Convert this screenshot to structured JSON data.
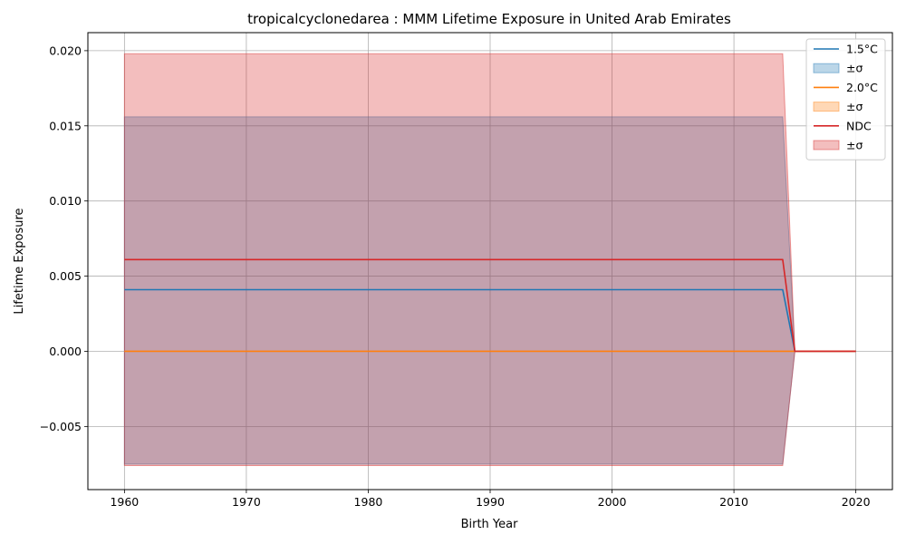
{
  "chart_data": {
    "type": "line",
    "title": "tropicalcyclonedarea : MMM Lifetime Exposure in United Arab Emirates",
    "xlabel": "Birth Year",
    "ylabel": "Lifetime Exposure",
    "xlim": [
      1957,
      2023
    ],
    "ylim": [
      -0.0092,
      0.0212
    ],
    "xticks": [
      1960,
      1970,
      1980,
      1990,
      2000,
      2010,
      2020
    ],
    "xtick_labels": [
      "1960",
      "1970",
      "1980",
      "1990",
      "2000",
      "2010",
      "2020"
    ],
    "yticks": [
      -0.005,
      0.0,
      0.005,
      0.01,
      0.015,
      0.02
    ],
    "ytick_labels": [
      "−0.005",
      "0.000",
      "0.005",
      "0.010",
      "0.015",
      "0.020"
    ],
    "grid": true,
    "legend_position": "top-right",
    "series": [
      {
        "name": "1.5°C",
        "band_label": "±σ",
        "color": "#1f77b4",
        "band_color": "#1f77b4",
        "x": [
          1960,
          2014,
          2015,
          2020
        ],
        "values": [
          0.0041,
          0.0041,
          0.0,
          0.0
        ],
        "upper": [
          0.0156,
          0.0156,
          0.0,
          0.0
        ],
        "lower": [
          -0.0075,
          -0.0075,
          0.0,
          0.0
        ]
      },
      {
        "name": "2.0°C",
        "band_label": "±σ",
        "color": "#ff7f0e",
        "band_color": "#ff7f0e",
        "x": [
          1960,
          2014,
          2015,
          2020
        ],
        "values": [
          0.0,
          0.0,
          0.0,
          0.0
        ],
        "upper": [
          0.0,
          0.0,
          0.0,
          0.0
        ],
        "lower": [
          0.0,
          0.0,
          0.0,
          0.0
        ]
      },
      {
        "name": "NDC",
        "band_label": "±σ",
        "color": "#d62728",
        "band_color": "#d62728",
        "x": [
          1960,
          2014,
          2015,
          2020
        ],
        "values": [
          0.0061,
          0.0061,
          0.0,
          0.0
        ],
        "upper": [
          0.0198,
          0.0198,
          0.0,
          0.0
        ],
        "lower": [
          -0.0076,
          -0.0076,
          0.0,
          0.0
        ]
      }
    ]
  }
}
